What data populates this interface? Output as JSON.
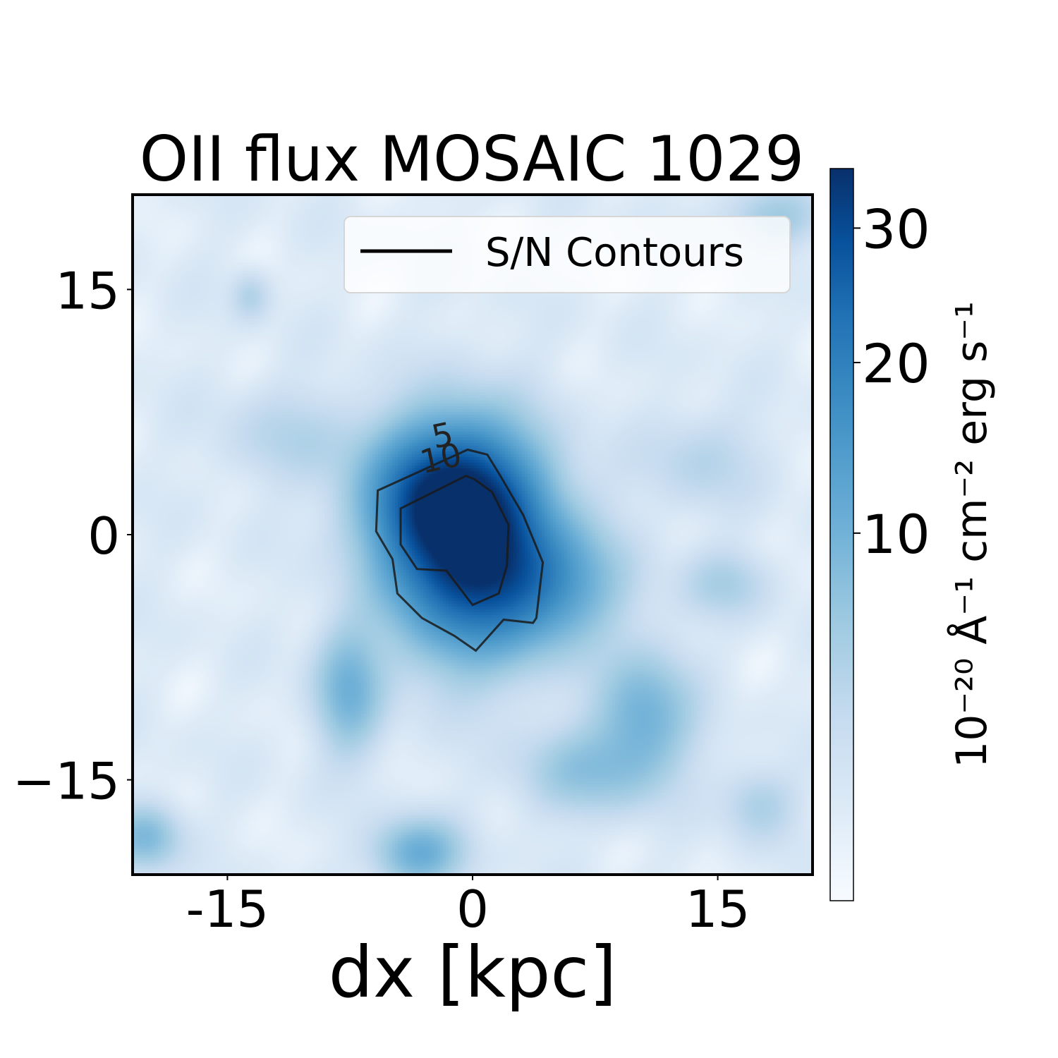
{
  "chart_data": {
    "type": "heatmap",
    "title": "OII flux MOSAIC 1029",
    "xlabel": "dx [kpc]",
    "ylabel": "",
    "xlim": [
      -20.8,
      20.8
    ],
    "ylim": [
      -20.8,
      20.8
    ],
    "x_ticks": [
      -15,
      0,
      15
    ],
    "x_tick_labels": [
      "-15",
      "0",
      "15"
    ],
    "y_ticks": [
      15,
      0,
      -15
    ],
    "y_tick_labels": [
      "15",
      "0",
      "−15"
    ],
    "colormap": "Blues",
    "colorbar": {
      "label": "10⁻²⁰ Å⁻¹ cm⁻² erg s⁻¹",
      "ticks": [
        30,
        20,
        10
      ],
      "tick_labels": [
        "30",
        "20",
        "10"
      ],
      "range": [
        0,
        35
      ],
      "scale": "nonlinear"
    },
    "blobs": [
      {
        "x": -0.3,
        "y": -0.4,
        "peak": 35,
        "sx": 3.2,
        "sy": 4.2
      },
      {
        "x": -2.0,
        "y": 2.5,
        "peak": 18,
        "sx": 3.0,
        "sy": 2.6
      },
      {
        "x": 4.5,
        "y": -3.0,
        "peak": 12,
        "sx": 3.0,
        "sy": 2.5
      },
      {
        "x": -7.6,
        "y": -9.5,
        "peak": 9,
        "sx": 1.4,
        "sy": 2.6
      },
      {
        "x": 10.5,
        "y": -11.0,
        "peak": 9,
        "sx": 2.0,
        "sy": 2.6
      },
      {
        "x": 7.0,
        "y": -14.5,
        "peak": 6,
        "sx": 2.8,
        "sy": 1.8
      },
      {
        "x": -3.3,
        "y": -19.5,
        "peak": 10,
        "sx": 1.8,
        "sy": 1.4
      },
      {
        "x": -20.0,
        "y": -18.5,
        "peak": 8,
        "sx": 1.4,
        "sy": 1.3
      },
      {
        "x": -13.6,
        "y": 14.6,
        "peak": 3.5,
        "sx": 0.8,
        "sy": 1.0
      },
      {
        "x": 18.5,
        "y": 19.5,
        "peak": 5,
        "sx": 2.0,
        "sy": 1.2
      },
      {
        "x": 15.5,
        "y": -3.0,
        "peak": 4,
        "sx": 1.8,
        "sy": 1.4
      },
      {
        "x": -11.0,
        "y": 6.0,
        "peak": 3,
        "sx": 3.0,
        "sy": 2.0
      },
      {
        "x": 14.0,
        "y": 4.5,
        "peak": 3,
        "sx": 2.5,
        "sy": 2.0
      },
      {
        "x": 17.5,
        "y": -16.5,
        "peak": 4,
        "sx": 1.5,
        "sy": 1.5
      }
    ],
    "contours": [
      {
        "level": 5,
        "label": "5",
        "label_position": [
          -1.7,
          5.4
        ],
        "points": [
          [
            -0.3,
            5.2
          ],
          [
            -5.8,
            2.7
          ],
          [
            -5.9,
            0.2
          ],
          [
            -4.9,
            -1.5
          ],
          [
            -4.6,
            -3.6
          ],
          [
            -3.1,
            -5.1
          ],
          [
            -1.1,
            -6.2
          ],
          [
            0.2,
            -7.1
          ],
          [
            1.9,
            -5.2
          ],
          [
            3.7,
            -5.4
          ],
          [
            3.9,
            -5.1
          ],
          [
            4.3,
            -1.7
          ],
          [
            3.1,
            1.2
          ],
          [
            1.7,
            3.6
          ],
          [
            0.9,
            4.9
          ]
        ]
      },
      {
        "level": 10,
        "label": "10",
        "label_position": [
          -1.8,
          4.0
        ],
        "points": [
          [
            -0.4,
            3.6
          ],
          [
            -4.4,
            1.6
          ],
          [
            -4.4,
            -0.6
          ],
          [
            -3.4,
            -2.1
          ],
          [
            -1.6,
            -2.2
          ],
          [
            0.0,
            -4.3
          ],
          [
            1.6,
            -3.6
          ],
          [
            2.1,
            -1.9
          ],
          [
            2.2,
            0.6
          ],
          [
            1.2,
            2.6
          ],
          [
            0.1,
            3.4
          ]
        ]
      }
    ],
    "legend": {
      "entries": [
        {
          "label": "S/N Contours",
          "color": "#000000"
        }
      ],
      "position": "upper right"
    }
  }
}
